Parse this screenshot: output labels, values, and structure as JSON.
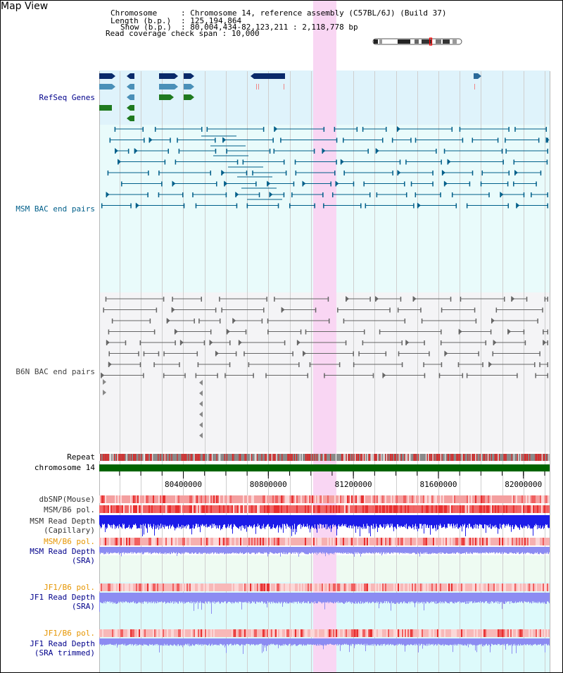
{
  "title": "Map View",
  "header": {
    "chromosome_label": "Chromosome",
    "chromosome_value": "Chromosome 14, reference assembly (C57BL/6J) (Build 37)",
    "length_label": "Length (b.p.)",
    "length_value": "125,194,864",
    "show_label": "Show (b.p.)",
    "show_value": "80,004,434-82,123,211 : 2,118,778 bp",
    "span_label": "Read coverage check span",
    "span_value": "10,000"
  },
  "view": {
    "start": 80004434,
    "end": 82123211,
    "highlight_start": 81010000,
    "highlight_end": 81120000,
    "ticks": [
      80400000,
      80800000,
      81200000,
      81600000,
      82000000
    ],
    "tick_labels": [
      "80400000",
      "80800000",
      "81200000",
      "81600000",
      "82000000"
    ]
  },
  "ideogram": {
    "chromosome_length": 125194864,
    "window_start": 80004434,
    "window_end": 82123211
  },
  "tracks": {
    "refseq": "RefSeq Genes",
    "msm_bac": "MSM BAC end pairs",
    "b6n_bac": "B6N BAC end pairs",
    "repeat": "Repeat",
    "chromosome": "chromosome 14",
    "dbsnp": "dbSNP(Mouse)",
    "msm_b6_pol_1": "MSM/B6 pol.",
    "msm_depth_cap_1": "MSM Read Depth",
    "msm_depth_cap_2": "(Capillary)",
    "msm_b6_pol_2": "MSM/B6 pol.",
    "msm_depth_sra_1": "MSM Read Depth",
    "msm_depth_sra_2": "(SRA)",
    "jf1_b6_pol_1": "JF1/B6 pol.",
    "jf1_depth_sra_1": "JF1 Read Depth",
    "jf1_depth_sra_2": "(SRA)",
    "jf1_b6_pol_2": "JF1/B6 pol.",
    "jf1_depth_trim_1": "JF1 Read Depth",
    "jf1_depth_trim_2": "(SRA trimmed)"
  },
  "colors": {
    "refseq_bg": "#dff3fb",
    "msm_bac_bg": "#e9fbfb",
    "b6n_bac_bg": "#f4f4f6",
    "msm_sra_bg": "#eefbf2",
    "jf1_bg": "#ddfafb",
    "highlight": "#f9d6f3",
    "refseq_label": "#00008b",
    "msm_bac_label": "#005f8a",
    "b6n_bac_label": "#444444",
    "chromosome_bar": "#006400",
    "orange_label": "#e69500",
    "blue_label": "#00008b",
    "msm_bac_line": "#005f8a",
    "b6n_bac_line": "#666666",
    "capillary_depth": "#1c1ce8",
    "sra_depth": "#8c8cf2"
  }
}
